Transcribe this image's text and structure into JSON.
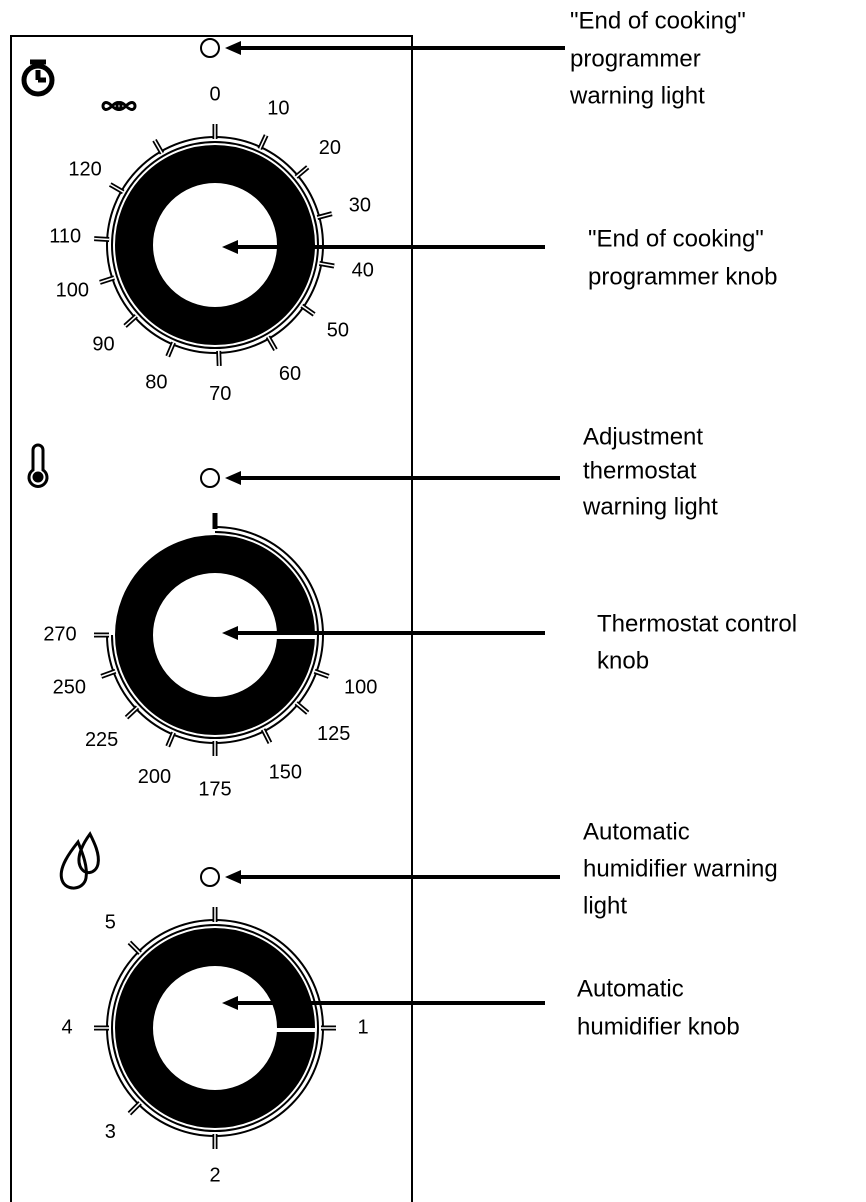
{
  "dials": [
    {
      "labels": [
        "0",
        "10",
        "20",
        "30",
        "40",
        "50",
        "60",
        "70",
        "80",
        "90",
        "100",
        "110",
        "120"
      ]
    },
    {
      "labels": [
        "100",
        "125",
        "150",
        "175",
        "200",
        "225",
        "250",
        "270"
      ]
    },
    {
      "labels": [
        "1",
        "2",
        "3",
        "4",
        "5"
      ]
    }
  ],
  "annotations": [
    {
      "lines": [
        "\"End of cooking\"",
        "programmer",
        "warning light"
      ]
    },
    {
      "lines": [
        "\"End of cooking\"",
        "programmer knob"
      ]
    },
    {
      "lines": [
        "Adjustment",
        "thermostat",
        "warning light"
      ]
    },
    {
      "lines": [
        "Thermostat control",
        "knob"
      ]
    },
    {
      "lines": [
        "Automatic",
        "humidifier warning",
        "light"
      ]
    },
    {
      "lines": [
        "Automatic",
        "humidifier knob"
      ]
    }
  ]
}
